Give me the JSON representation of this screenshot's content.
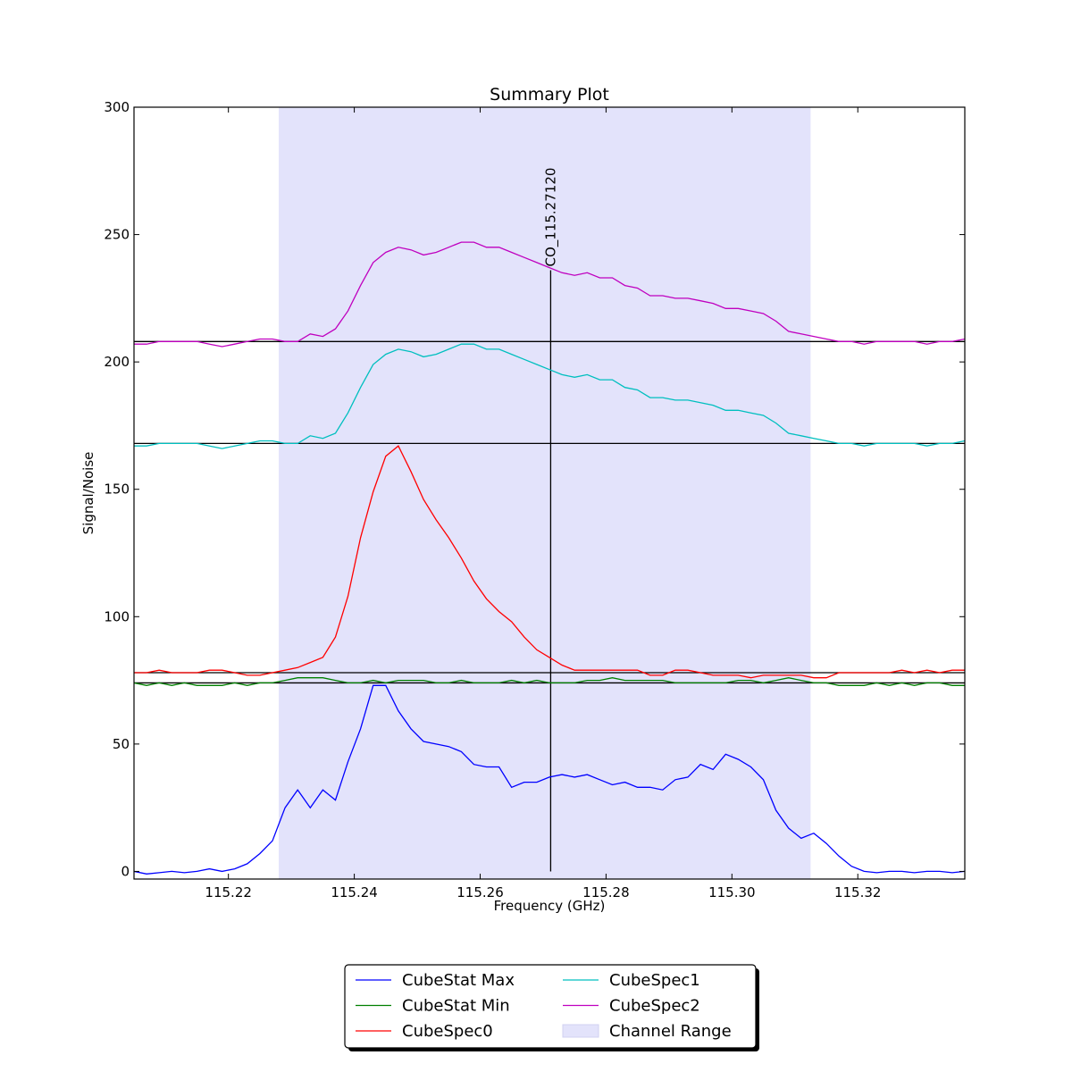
{
  "chart_data": {
    "type": "line",
    "title": "Summary Plot",
    "xlabel": "Frequency (GHz)",
    "ylabel": "Signal/Noise",
    "xlim": [
      115.205,
      115.337
    ],
    "ylim": [
      -3,
      300
    ],
    "xticks": [
      115.22,
      115.24,
      115.26,
      115.28,
      115.3,
      115.32
    ],
    "xtick_labels": [
      "115.22",
      "115.24",
      "115.26",
      "115.28",
      "115.30",
      "115.32"
    ],
    "yticks": [
      0,
      50,
      100,
      150,
      200,
      250,
      300
    ],
    "ytick_labels": [
      "0",
      "50",
      "100",
      "150",
      "200",
      "250",
      "300"
    ],
    "grid": false,
    "legend_position": "bottom-center",
    "channel_range": {
      "label": "Channel Range",
      "x0": 115.228,
      "x1": 115.3125,
      "color": "#e3e3fb"
    },
    "line_marker": {
      "label": "CO_115.27120",
      "x": 115.2712
    },
    "baselines": [
      208,
      168,
      78,
      74
    ],
    "x": [
      115.205,
      115.207,
      115.209,
      115.211,
      115.213,
      115.215,
      115.217,
      115.219,
      115.221,
      115.223,
      115.225,
      115.227,
      115.229,
      115.231,
      115.233,
      115.235,
      115.237,
      115.239,
      115.241,
      115.243,
      115.245,
      115.247,
      115.249,
      115.251,
      115.253,
      115.255,
      115.257,
      115.259,
      115.261,
      115.263,
      115.265,
      115.267,
      115.269,
      115.271,
      115.273,
      115.275,
      115.277,
      115.279,
      115.281,
      115.283,
      115.285,
      115.287,
      115.289,
      115.291,
      115.293,
      115.295,
      115.297,
      115.299,
      115.301,
      115.303,
      115.305,
      115.307,
      115.309,
      115.311,
      115.313,
      115.315,
      115.317,
      115.319,
      115.321,
      115.323,
      115.325,
      115.327,
      115.329,
      115.331,
      115.333,
      115.335,
      115.337
    ],
    "series": [
      {
        "name": "CubeStat Max",
        "color": "#0000ff",
        "values": [
          0,
          -1,
          -0.5,
          0,
          -0.5,
          0,
          1,
          0,
          1,
          3,
          7,
          12,
          25,
          32,
          25,
          32,
          28,
          43,
          56,
          73,
          73,
          63,
          56,
          51,
          50,
          49,
          47,
          42,
          41,
          41,
          33,
          35,
          35,
          37,
          38,
          37,
          38,
          36,
          34,
          35,
          33,
          33,
          32,
          36,
          37,
          42,
          40,
          46,
          44,
          41,
          36,
          24,
          17,
          13,
          15,
          11,
          6,
          2,
          0,
          -0.5,
          0,
          0,
          -0.5,
          0,
          0,
          -0.5,
          0
        ]
      },
      {
        "name": "CubeStat Min",
        "color": "#008000",
        "values": [
          74,
          73,
          74,
          73,
          74,
          73,
          73,
          73,
          74,
          73,
          74,
          74,
          75,
          76,
          76,
          76,
          75,
          74,
          74,
          75,
          74,
          75,
          75,
          75,
          74,
          74,
          75,
          74,
          74,
          74,
          75,
          74,
          75,
          74,
          74,
          74,
          75,
          75,
          76,
          75,
          75,
          75,
          75,
          74,
          74,
          74,
          74,
          74,
          75,
          75,
          74,
          75,
          76,
          75,
          74,
          74,
          73,
          73,
          73,
          74,
          73,
          74,
          73,
          74,
          74,
          73,
          73
        ]
      },
      {
        "name": "CubeSpec0",
        "color": "#ff0000",
        "values": [
          78,
          78,
          79,
          78,
          78,
          78,
          79,
          79,
          78,
          77,
          77,
          78,
          79,
          80,
          82,
          84,
          92,
          108,
          131,
          149,
          163,
          167,
          157,
          146,
          138,
          131,
          123,
          114,
          107,
          102,
          98,
          92,
          87,
          84,
          81,
          79,
          79,
          79,
          79,
          79,
          79,
          77,
          77,
          79,
          79,
          78,
          77,
          77,
          77,
          76,
          77,
          77,
          77,
          77,
          76,
          76,
          78,
          78,
          78,
          78,
          78,
          79,
          78,
          79,
          78,
          79,
          79
        ]
      },
      {
        "name": "CubeSpec1",
        "color": "#00bfbf",
        "values": [
          167,
          167,
          168,
          168,
          168,
          168,
          167,
          166,
          167,
          168,
          169,
          169,
          168,
          168,
          171,
          170,
          172,
          180,
          190,
          199,
          203,
          205,
          204,
          202,
          203,
          205,
          207,
          207,
          205,
          205,
          203,
          201,
          199,
          197,
          195,
          194,
          195,
          193,
          193,
          190,
          189,
          186,
          186,
          185,
          185,
          184,
          183,
          181,
          181,
          180,
          179,
          176,
          172,
          171,
          170,
          169,
          168,
          168,
          167,
          168,
          168,
          168,
          168,
          167,
          168,
          168,
          169
        ]
      },
      {
        "name": "CubeSpec2",
        "color": "#bf00bf",
        "values": [
          207,
          207,
          208,
          208,
          208,
          208,
          207,
          206,
          207,
          208,
          209,
          209,
          208,
          208,
          211,
          210,
          213,
          220,
          230,
          239,
          243,
          245,
          244,
          242,
          243,
          245,
          247,
          247,
          245,
          245,
          243,
          241,
          239,
          237,
          235,
          234,
          235,
          233,
          233,
          230,
          229,
          226,
          226,
          225,
          225,
          224,
          223,
          221,
          221,
          220,
          219,
          216,
          212,
          211,
          210,
          209,
          208,
          208,
          207,
          208,
          208,
          208,
          208,
          207,
          208,
          208,
          209
        ]
      }
    ]
  }
}
